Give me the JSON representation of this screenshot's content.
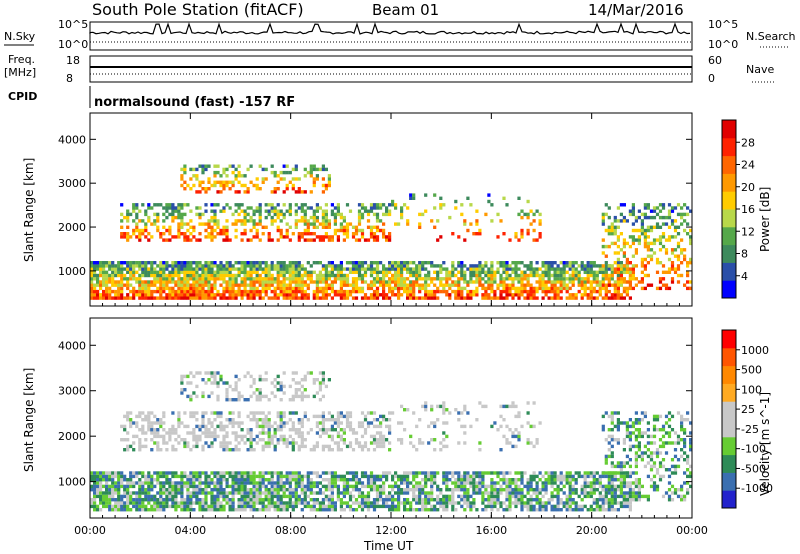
{
  "header": {
    "station": "South Pole Station (fitACF)",
    "beam": "Beam 01",
    "date": "14/Mar/2016"
  },
  "strips": {
    "nsky_label": "N.Sky",
    "nsky_ticks": [
      "10^5",
      "10^0"
    ],
    "nsearch_label": "N.Search",
    "nsearch_ticks": [
      "10^5",
      "10^0"
    ],
    "freq_label_1": "Freq.",
    "freq_label_2": "[MHz]",
    "freq_ticks": [
      "18",
      "8"
    ],
    "nave_label": "Nave",
    "nave_ticks": [
      "60",
      "0"
    ],
    "cpid_label": "CPID",
    "cpid_value": "normalsound (fast) -157 RF"
  },
  "colors": {
    "power": [
      "#0000ff",
      "#2a4fa8",
      "#3d8a5c",
      "#55a84a",
      "#b8d84a",
      "#ffcc00",
      "#ff9900",
      "#ff6600",
      "#ff2200",
      "#e00000"
    ],
    "velocity": [
      "#ff0000",
      "#ff5500",
      "#ff8800",
      "#ffaa22",
      "#c8c8c8",
      "#c8c8c8",
      "#66cc33",
      "#2e8b57",
      "#3a6fb0",
      "#2222cc"
    ]
  },
  "chart_data": [
    {
      "type": "heatmap",
      "name": "power",
      "ylabel": "Slant Range [km]",
      "xlabel": "",
      "x_ticks": [
        "00:00",
        "04:00",
        "08:00",
        "12:00",
        "16:00",
        "20:00",
        "00:00"
      ],
      "y_ticks": [
        "1000",
        "2000",
        "3000",
        "4000"
      ],
      "ylim": [
        200,
        4600
      ],
      "colorbar_label": "Power [dB]",
      "colorbar_ticks": [
        "4",
        "8",
        "12",
        "16",
        "20",
        "24",
        "28"
      ]
    },
    {
      "type": "heatmap",
      "name": "velocity",
      "ylabel": "Slant Range [km]",
      "xlabel": "Time UT",
      "x_ticks": [
        "00:00",
        "04:00",
        "08:00",
        "12:00",
        "16:00",
        "20:00",
        "00:00"
      ],
      "y_ticks": [
        "1000",
        "2000",
        "3000",
        "4000"
      ],
      "ylim": [
        200,
        4600
      ],
      "colorbar_label": "Velocity [m s^-1]",
      "colorbar_ticks": [
        "1000",
        "500",
        "100",
        "25",
        "-25",
        "-100",
        "-500",
        "-1000"
      ]
    }
  ]
}
